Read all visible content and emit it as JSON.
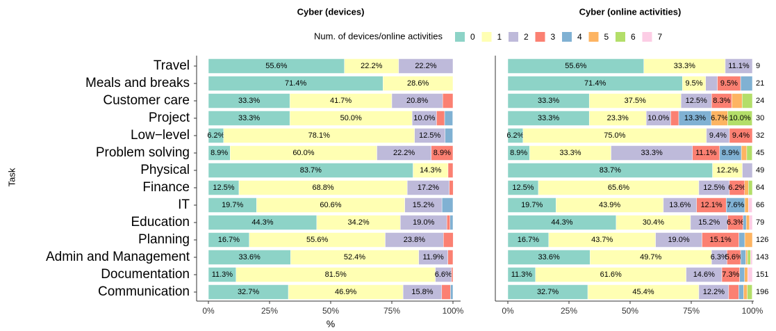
{
  "chart_data": {
    "type": "stacked_barh",
    "ylabel": "Task",
    "xlabel": "%",
    "legend_title": "Num. of devices/online activities",
    "categories": [
      "Travel",
      "Meals and breaks",
      "Customer care",
      "Project",
      "Low−level",
      "Problem solving",
      "Physical",
      "Finance",
      "IT",
      "Education",
      "Planning",
      "Admin and Management",
      "Documentation",
      "Communication"
    ],
    "legend": [
      {
        "name": "0",
        "color": "#8dd3c7"
      },
      {
        "name": "1",
        "color": "#ffffb3"
      },
      {
        "name": "2",
        "color": "#bebada"
      },
      {
        "name": "3",
        "color": "#fb8072"
      },
      {
        "name": "4",
        "color": "#80b1d3"
      },
      {
        "name": "5",
        "color": "#fdb462"
      },
      {
        "name": "6",
        "color": "#b3de69"
      },
      {
        "name": "7",
        "color": "#fccde5"
      }
    ],
    "xlim": [
      0,
      100
    ],
    "xticks": [
      {
        "value": 0,
        "label": "0%"
      },
      {
        "value": 25,
        "label": "25%"
      },
      {
        "value": 50,
        "label": "50%"
      },
      {
        "value": 75,
        "label": "75%"
      },
      {
        "value": 100,
        "label": "100%"
      }
    ],
    "facets": [
      {
        "title": "Cyber (devices)",
        "series": [
          {
            "values": [
              55.6,
              71.4,
              33.3,
              33.3,
              6.2,
              8.9,
              83.7,
              12.5,
              19.7,
              44.3,
              16.7,
              33.6,
              11.3,
              32.7
            ],
            "value_labels": [
              "55.6%",
              "71.4%",
              "33.3%",
              "33.3%",
              "6.2%",
              "8.9%",
              "83.7%",
              "12.5%",
              "19.7%",
              "44.3%",
              "16.7%",
              "33.6%",
              "11.3%",
              "32.7%"
            ]
          },
          {
            "values": [
              22.2,
              28.6,
              41.7,
              50.0,
              78.1,
              60.0,
              14.3,
              68.8,
              60.6,
              34.2,
              55.6,
              52.4,
              81.5,
              46.9
            ],
            "value_labels": [
              "22.2%",
              "28.6%",
              "41.7%",
              "50.0%",
              "78.1%",
              "60.0%",
              "14.3%",
              "68.8%",
              "60.6%",
              "34.2%",
              "55.6%",
              "52.4%",
              "81.5%",
              "46.9%"
            ]
          },
          {
            "values": [
              22.2,
              0,
              20.8,
              10.0,
              12.5,
              22.2,
              0,
              17.2,
              15.2,
              19.0,
              23.8,
              11.9,
              6.6,
              15.8
            ],
            "value_labels": [
              "22.2%",
              null,
              "20.8%",
              "10.0%",
              "12.5%",
              "22.2%",
              null,
              "17.2%",
              "15.2%",
              "19.0%",
              "23.8%",
              "11.9%",
              "6.6%",
              "15.8%"
            ]
          },
          {
            "values": [
              0,
              0,
              4.2,
              3.3,
              0,
              8.9,
              2.0,
              1.6,
              0,
              1.3,
              4.0,
              2.1,
              0.6,
              3.6
            ],
            "value_labels": [
              null,
              null,
              null,
              null,
              null,
              "8.9%",
              null,
              null,
              null,
              null,
              null,
              null,
              null,
              null
            ]
          },
          {
            "values": [
              0,
              0,
              0,
              3.3,
              3.1,
              0,
              0,
              0,
              4.5,
              1.2,
              0,
              0,
              0,
              1.0
            ]
          },
          {
            "values": [
              0,
              0,
              0,
              0,
              0,
              0,
              0,
              0,
              0,
              0,
              0,
              0,
              0,
              0
            ]
          },
          {
            "values": [
              0,
              0,
              0,
              0,
              0,
              0,
              0,
              0,
              0,
              0,
              0,
              0,
              0,
              0
            ]
          },
          {
            "values": [
              0,
              0,
              0,
              0,
              0,
              0,
              0,
              0,
              0,
              0,
              0,
              0,
              0,
              0
            ]
          }
        ]
      },
      {
        "title": "Cyber (online activities)",
        "n_labels": [
          9,
          21,
          24,
          30,
          32,
          45,
          49,
          64,
          66,
          79,
          126,
          143,
          151,
          196
        ],
        "series": [
          {
            "values": [
              55.6,
              71.4,
              33.3,
              33.3,
              6.2,
              8.9,
              83.7,
              12.5,
              19.7,
              44.3,
              16.7,
              33.6,
              11.3,
              32.7
            ],
            "value_labels": [
              "55.6%",
              "71.4%",
              "33.3%",
              "33.3%",
              "6.2%",
              "8.9%",
              "83.7%",
              "12.5%",
              "19.7%",
              "44.3%",
              "16.7%",
              "33.6%",
              "11.3%",
              "32.7%"
            ]
          },
          {
            "values": [
              33.3,
              9.5,
              37.5,
              23.3,
              75.0,
              33.3,
              12.2,
              65.6,
              43.9,
              30.4,
              43.7,
              49.7,
              61.6,
              45.4
            ],
            "value_labels": [
              "33.3%",
              "9.5%",
              "37.5%",
              "23.3%",
              "75.0%",
              "33.3%",
              "12.2%",
              "65.6%",
              "43.9%",
              "30.4%",
              "43.7%",
              "49.7%",
              "61.6%",
              "45.4%"
            ]
          },
          {
            "values": [
              11.1,
              4.8,
              12.5,
              10.0,
              9.4,
              33.3,
              4.1,
              12.5,
              13.6,
              15.2,
              19.0,
              6.3,
              14.6,
              12.2
            ],
            "value_labels": [
              "11.1%",
              null,
              "12.5%",
              "10.0%",
              "9.4%",
              "33.3%",
              null,
              "12.5%",
              "13.6%",
              "15.2%",
              "19.0%",
              "6.3%",
              "14.6%",
              "12.2%"
            ]
          },
          {
            "values": [
              0,
              9.5,
              8.3,
              3.3,
              9.4,
              11.1,
              0,
              6.2,
              12.1,
              6.3,
              15.1,
              5.6,
              7.3,
              4.1
            ],
            "value_labels": [
              null,
              "9.5%",
              "8.3%",
              null,
              "9.4%",
              "11.1%",
              null,
              "6.2%",
              "12.1%",
              "6.3%",
              "15.1%",
              "5.6%",
              "7.3%",
              null
            ]
          },
          {
            "values": [
              0,
              4.8,
              0,
              13.3,
              0,
              8.9,
              0,
              0,
              7.6,
              1.3,
              2.4,
              2.1,
              2.0,
              2.0
            ],
            "value_labels": [
              null,
              null,
              null,
              "13.3%",
              null,
              "8.9%",
              null,
              null,
              "7.6%",
              null,
              null,
              null,
              null,
              null
            ]
          },
          {
            "values": [
              0,
              0,
              4.2,
              6.7,
              0,
              2.2,
              0,
              1.6,
              1.5,
              1.3,
              3.1,
              0.7,
              1.3,
              1.5
            ],
            "value_labels": [
              null,
              null,
              null,
              "6.7%",
              null,
              null,
              null,
              null,
              null,
              null,
              null,
              null,
              null,
              null
            ]
          },
          {
            "values": [
              0,
              0,
              4.2,
              10.0,
              0,
              2.2,
              0,
              1.6,
              0,
              0,
              0,
              1.3,
              0,
              2.0
            ],
            "value_labels": [
              null,
              null,
              null,
              "10.0%",
              null,
              null,
              null,
              null,
              null,
              null,
              null,
              null,
              null,
              null
            ]
          },
          {
            "values": [
              0,
              0,
              0,
              0,
              0,
              0,
              0,
              0,
              1.5,
              1.2,
              0,
              0.7,
              1.9,
              0
            ]
          }
        ]
      }
    ]
  }
}
